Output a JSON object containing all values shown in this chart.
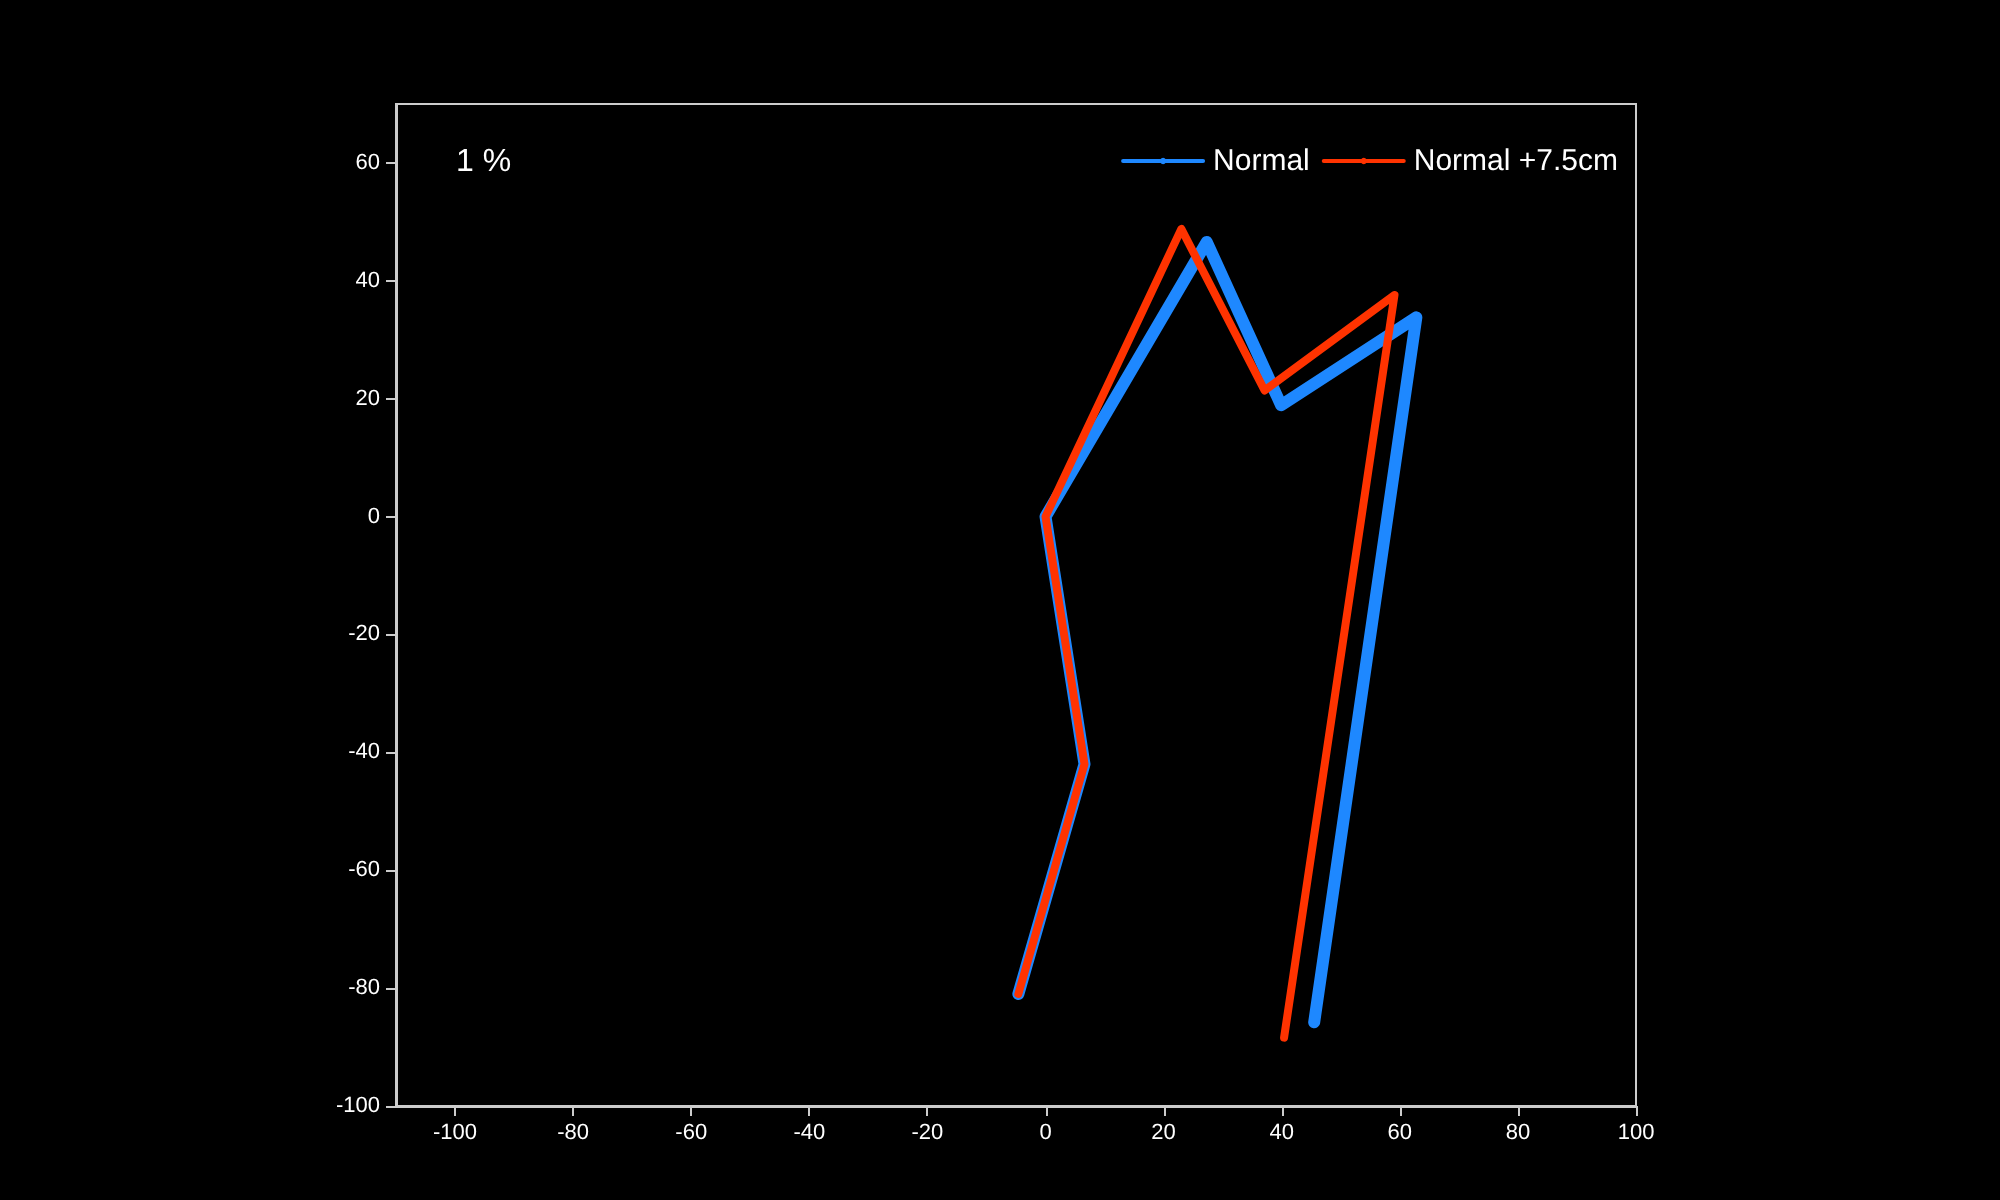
{
  "chart_data": {
    "type": "line",
    "annotations": [
      "1 %"
    ],
    "xlim": [
      -110,
      100
    ],
    "xticks": [
      -100,
      -80,
      -60,
      -40,
      -20,
      0,
      20,
      40,
      60,
      80,
      100
    ],
    "ylim": [
      -100,
      70
    ],
    "yticks": [
      -100,
      -80,
      -60,
      -40,
      -20,
      0,
      20,
      40,
      60
    ],
    "grid": false,
    "legend": "top right",
    "marker": "none",
    "line_style": "solid",
    "series": [
      {
        "name": "Normal",
        "color": "#1e88ff",
        "x": [
          45.5,
          62.8,
          39.9,
          27.3,
          0,
          6.6,
          -4.6
        ],
        "values": [
          -85.8,
          33.8,
          18.9,
          46.6,
          0,
          -42,
          -81
        ]
      },
      {
        "name": "Normal +7.5cm",
        "color": "#ff3300",
        "x": [
          40.4,
          59.1,
          37.1,
          23,
          0,
          6.6,
          -4.6
        ],
        "values": [
          -88.4,
          37.6,
          21.4,
          48.8,
          0,
          -42,
          -81
        ]
      }
    ]
  }
}
